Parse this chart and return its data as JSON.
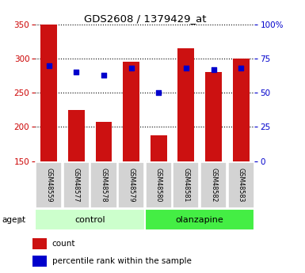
{
  "title": "GDS2608 / 1379429_at",
  "samples": [
    "GSM48559",
    "GSM48577",
    "GSM48578",
    "GSM48579",
    "GSM48580",
    "GSM48581",
    "GSM48582",
    "GSM48583"
  ],
  "counts": [
    350,
    225,
    208,
    295,
    188,
    315,
    280,
    300
  ],
  "percentiles": [
    70,
    65,
    63,
    68,
    50,
    68,
    67,
    68
  ],
  "bar_color": "#cc1111",
  "dot_color": "#0000cc",
  "y_min": 150,
  "y_max": 350,
  "y_ticks": [
    150,
    200,
    250,
    300,
    350
  ],
  "right_y_ticks": [
    0,
    25,
    50,
    75,
    100
  ],
  "groups": [
    {
      "label": "control",
      "start": 0,
      "end": 4,
      "color": "#ccffcc"
    },
    {
      "label": "olanzapine",
      "start": 4,
      "end": 8,
      "color": "#44ee44"
    }
  ],
  "legend_count_label": "count",
  "legend_percentile_label": "percentile rank within the sample",
  "bar_color_left": "#cc0000",
  "right_ylabel_color": "#0000cc",
  "bar_width": 0.6
}
